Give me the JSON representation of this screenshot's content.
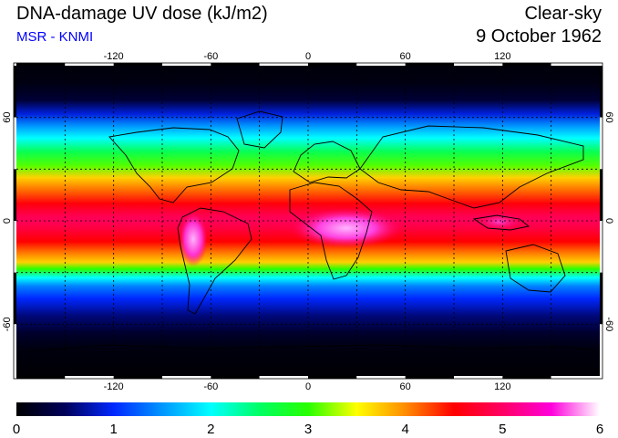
{
  "header": {
    "title": "DNA-damage UV dose (kJ/m2)",
    "subtitle": "MSR - KNMI",
    "condition": "Clear-sky",
    "date": "9 October 1962"
  },
  "colors": {
    "subtitle": "#0000ff",
    "frame_dark": "#000000",
    "frame_light": "#ffffff",
    "graticule": "#000000",
    "coastline": "#000000"
  },
  "map": {
    "projection": "equirectangular",
    "lon_range": [
      -180,
      180
    ],
    "lat_range": [
      -90,
      90
    ],
    "graticule_lons": [
      -150,
      -120,
      -90,
      -60,
      -30,
      0,
      30,
      60,
      90,
      120,
      150
    ],
    "graticule_lats": [
      -60,
      -30,
      0,
      30,
      60
    ],
    "lon_tick_labels": [
      "-120",
      "-60",
      "0",
      "60",
      "120"
    ],
    "lat_tick_labels_left": [
      "60",
      "0",
      "-60"
    ],
    "lat_tick_labels_right": [
      "60",
      "0",
      "-60"
    ]
  },
  "colorbar": {
    "min": 0,
    "max": 6,
    "tick_labels": [
      "0",
      "1",
      "2",
      "3",
      "4",
      "5",
      "6"
    ],
    "stops": [
      {
        "v": 0.0,
        "c": "#000000"
      },
      {
        "v": 0.5,
        "c": "#00005a"
      },
      {
        "v": 1.0,
        "c": "#0028ff"
      },
      {
        "v": 1.5,
        "c": "#0096ff"
      },
      {
        "v": 2.0,
        "c": "#00ffff"
      },
      {
        "v": 2.5,
        "c": "#00ff64"
      },
      {
        "v": 3.0,
        "c": "#28ff00"
      },
      {
        "v": 3.5,
        "c": "#ffff00"
      },
      {
        "v": 4.0,
        "c": "#ff8c00"
      },
      {
        "v": 4.5,
        "c": "#ff0000"
      },
      {
        "v": 5.0,
        "c": "#ff0064"
      },
      {
        "v": 5.5,
        "c": "#ff00dc"
      },
      {
        "v": 6.0,
        "c": "#ffffff"
      }
    ]
  }
}
